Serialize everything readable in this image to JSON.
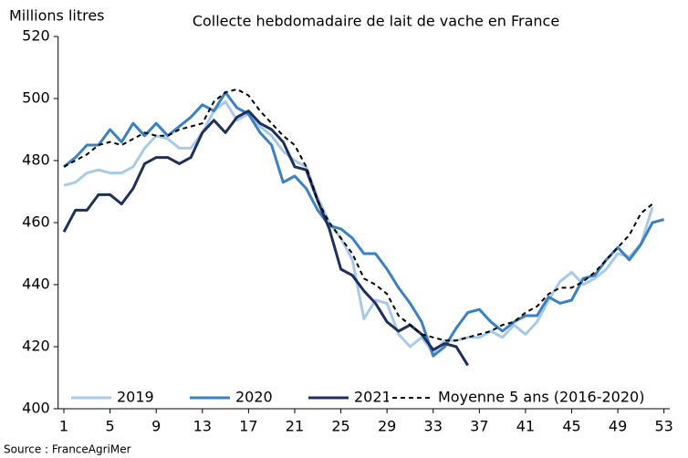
{
  "chart_data": {
    "type": "line",
    "title": "Collecte hebdomadaire de lait de vache en France",
    "y_label": "Millions litres",
    "source": "Source : FranceAgriMer",
    "x": [
      1,
      2,
      3,
      4,
      5,
      6,
      7,
      8,
      9,
      10,
      11,
      12,
      13,
      14,
      15,
      16,
      17,
      18,
      19,
      20,
      21,
      22,
      23,
      24,
      25,
      26,
      27,
      28,
      29,
      30,
      31,
      32,
      33,
      34,
      35,
      36,
      37,
      38,
      39,
      40,
      41,
      42,
      43,
      44,
      45,
      46,
      47,
      48,
      49,
      50,
      51,
      52,
      53
    ],
    "series": [
      {
        "name": "2019",
        "color": "#a9c9e9",
        "dashed": false,
        "values": [
          472,
          473,
          476,
          477,
          476,
          476,
          478,
          484,
          488,
          487,
          484,
          484,
          489,
          496,
          499,
          493,
          495,
          491,
          488,
          483,
          480,
          478,
          468,
          460,
          455,
          448,
          429,
          435,
          434,
          424,
          420,
          423,
          418,
          422,
          422,
          423,
          423,
          425,
          423,
          427,
          424,
          428,
          435,
          441,
          444,
          440,
          442,
          445,
          450,
          449,
          453,
          465,
          null
        ]
      },
      {
        "name": "2020",
        "color": "#3a80c2",
        "dashed": false,
        "values": [
          478,
          481,
          485,
          485,
          490,
          486,
          492,
          488,
          492,
          488,
          491,
          494,
          498,
          496,
          502,
          497,
          495,
          489,
          485,
          473,
          475,
          471,
          464,
          459,
          458,
          455,
          450,
          450,
          445,
          439,
          434,
          428,
          417,
          420,
          426,
          431,
          432,
          428,
          425,
          428,
          430,
          430,
          436,
          434,
          435,
          442,
          443,
          448,
          452,
          448,
          453,
          460,
          461
        ]
      },
      {
        "name": "2021",
        "color": "#1f2f5e",
        "dashed": false,
        "values": [
          457,
          464,
          464,
          469,
          469,
          466,
          471,
          479,
          481,
          481,
          479,
          481,
          489,
          493,
          489,
          494,
          496,
          492,
          490,
          486,
          478,
          477,
          467,
          458,
          445,
          443,
          438,
          434,
          428,
          425,
          427,
          424,
          419,
          421,
          420,
          414,
          null,
          null,
          null,
          null,
          null,
          null,
          null,
          null,
          null,
          null,
          null,
          null,
          null,
          null,
          null,
          null,
          null
        ]
      },
      {
        "name": "Moyenne 5 ans (2016-2020)",
        "color": "#000000",
        "dashed": true,
        "values": [
          478,
          480,
          482,
          485,
          486,
          485,
          487,
          489,
          488,
          488,
          490,
          491,
          492,
          499,
          502,
          503,
          501,
          496,
          492,
          488,
          485,
          478,
          467,
          460,
          455,
          450,
          442,
          440,
          437,
          430,
          427,
          424,
          423,
          422,
          422,
          423,
          424,
          425,
          427,
          428,
          431,
          433,
          437,
          439,
          439,
          441,
          444,
          448,
          452,
          456,
          463,
          466,
          null
        ]
      }
    ],
    "xlim": [
      0.5,
      53.5
    ],
    "xticks": [
      1,
      5,
      9,
      13,
      17,
      21,
      25,
      29,
      33,
      37,
      41,
      45,
      49,
      53
    ],
    "ylim": [
      400,
      520
    ],
    "yticks": [
      400,
      420,
      440,
      460,
      480,
      500,
      520
    ],
    "grid": false,
    "legend": "bottom"
  }
}
